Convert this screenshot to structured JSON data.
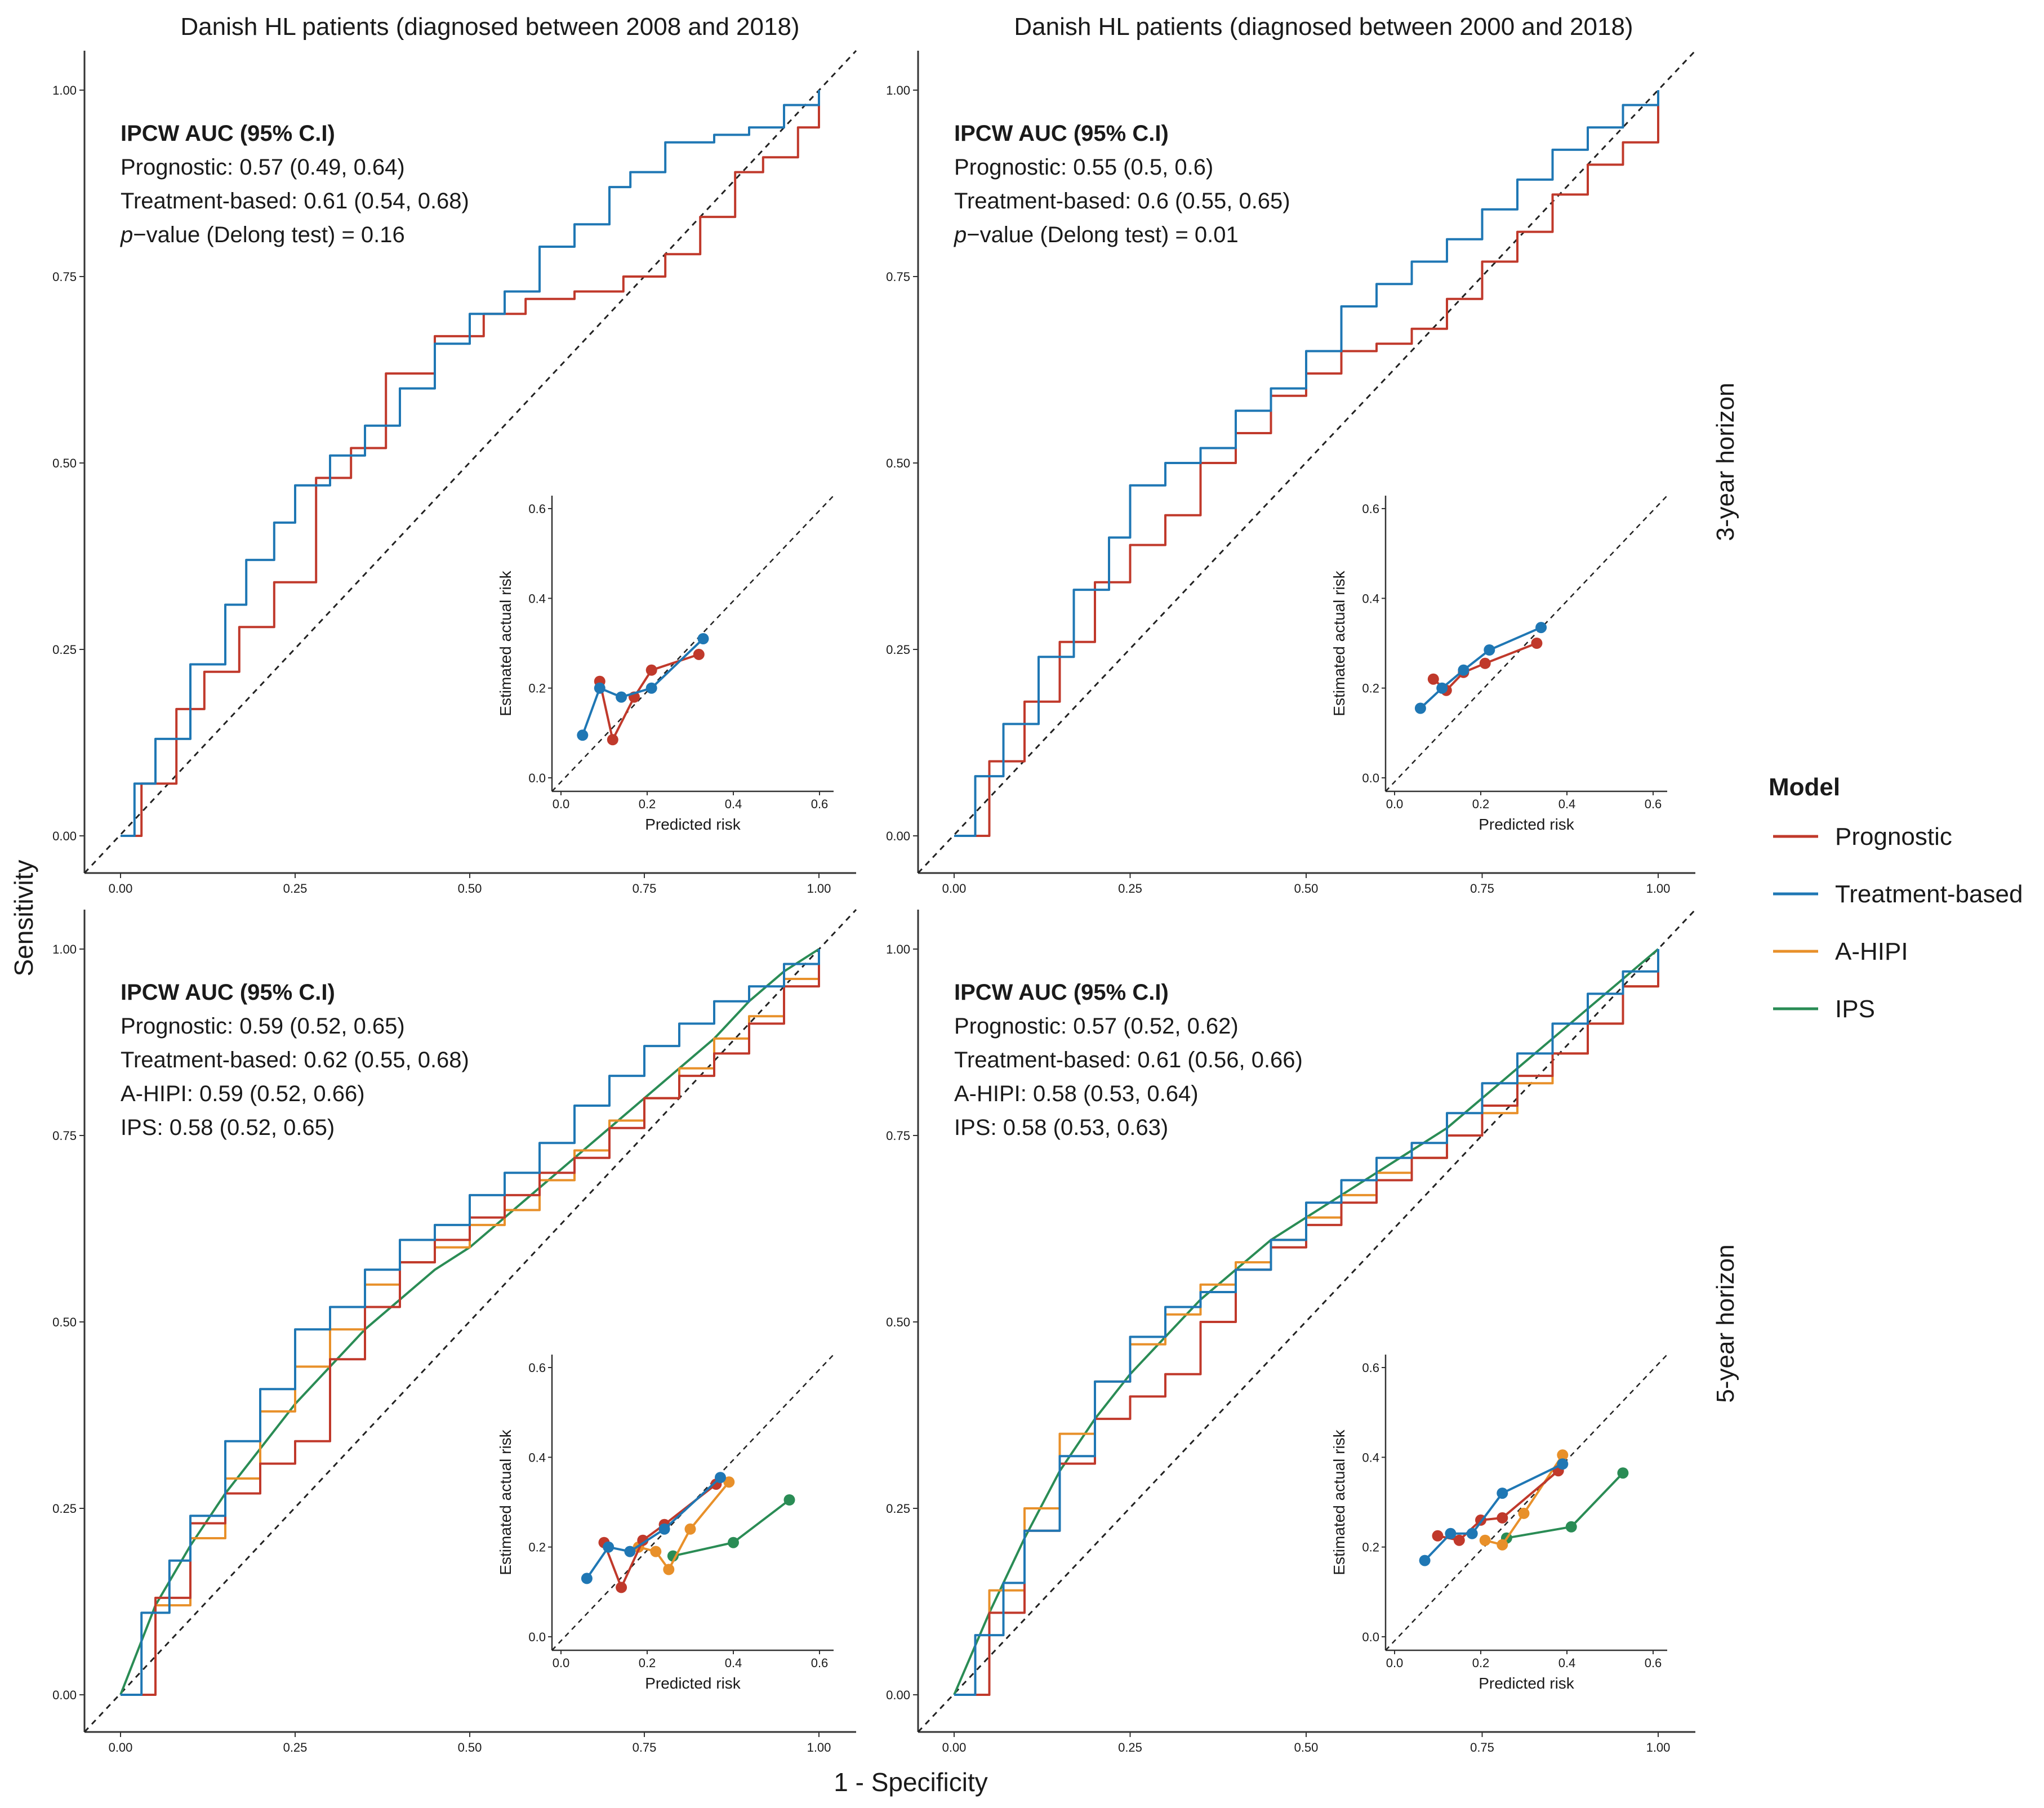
{
  "colors": {
    "Prognostic": "#c0392b",
    "Treatment-based": "#1f77b4",
    "A-HIPI": "#e8902a",
    "IPS": "#2a8c55"
  },
  "figure": {
    "x_axis_title": "1 - Specificity",
    "y_axis_title": "Sensitivity",
    "column_titles": [
      "Danish HL patients (diagnosed between 2008 and 2018)",
      "Danish HL patients (diagnosed between 2000 and 2018)"
    ],
    "row_labels": [
      "3-year horizon",
      "5-year horizon"
    ],
    "x_ticks": [
      "0.00",
      "0.25",
      "0.50",
      "0.75",
      "1.00"
    ],
    "y_ticks": [
      "0.00",
      "0.25",
      "0.50",
      "0.75",
      "1.00"
    ],
    "inset_x_ticks": [
      "0.0",
      "0.2",
      "0.4",
      "0.6"
    ],
    "inset_y_ticks": [
      "0.0",
      "0.2",
      "0.4",
      "0.6"
    ],
    "inset_xlabel": "Predicted risk",
    "inset_ylabel": "Estimated actual risk"
  },
  "legend": {
    "title": "Model",
    "items": [
      "Prognostic",
      "Treatment-based",
      "A-HIPI",
      "IPS"
    ]
  },
  "chart_data": [
    {
      "type": "line",
      "panel": "3-year horizon, 2008-2018",
      "title": "Danish HL patients (diagnosed between 2008 and 2018)",
      "xlabel": "1 - Specificity",
      "ylabel": "Sensitivity",
      "xlim": [
        0,
        1
      ],
      "ylim": [
        0,
        1
      ],
      "annotation": {
        "heading": "IPCW AUC (95% C.I)",
        "lines": [
          "Prognostic: 0.57 (0.49, 0.64)",
          "Treatment-based: 0.61 (0.54, 0.68)"
        ],
        "pvalue_prefix": "p",
        "pvalue_rest": "−value (Delong test) = 0.16"
      },
      "series": [
        {
          "name": "Treatment-based",
          "x": [
            0,
            0.02,
            0.05,
            0.1,
            0.15,
            0.18,
            0.22,
            0.25,
            0.3,
            0.35,
            0.4,
            0.45,
            0.5,
            0.55,
            0.6,
            0.65,
            0.7,
            0.73,
            0.78,
            0.85,
            0.9,
            0.95,
            1.0
          ],
          "y": [
            0,
            0.07,
            0.13,
            0.23,
            0.31,
            0.37,
            0.42,
            0.47,
            0.51,
            0.55,
            0.6,
            0.66,
            0.7,
            0.73,
            0.79,
            0.82,
            0.87,
            0.89,
            0.93,
            0.94,
            0.95,
            0.98,
            1.0
          ]
        },
        {
          "name": "Prognostic",
          "x": [
            0,
            0.03,
            0.08,
            0.12,
            0.17,
            0.22,
            0.28,
            0.33,
            0.38,
            0.45,
            0.52,
            0.58,
            0.65,
            0.72,
            0.78,
            0.83,
            0.88,
            0.92,
            0.97,
            1.0
          ],
          "y": [
            0,
            0.07,
            0.17,
            0.22,
            0.28,
            0.34,
            0.48,
            0.52,
            0.62,
            0.67,
            0.7,
            0.72,
            0.73,
            0.75,
            0.78,
            0.83,
            0.89,
            0.91,
            0.95,
            1.0
          ]
        }
      ],
      "calibration": {
        "xlabel": "Predicted risk",
        "ylabel": "Estimated actual risk",
        "xlim": [
          0,
          0.6
        ],
        "ylim": [
          0,
          0.6
        ],
        "series": [
          {
            "name": "Treatment-based",
            "x": [
              0.05,
              0.09,
              0.14,
              0.21,
              0.33
            ],
            "y": [
              0.095,
              0.2,
              0.18,
              0.2,
              0.31
            ]
          },
          {
            "name": "Prognostic",
            "x": [
              0.09,
              0.12,
              0.17,
              0.21,
              0.32
            ],
            "y": [
              0.215,
              0.085,
              0.18,
              0.24,
              0.275
            ]
          }
        ]
      }
    },
    {
      "type": "line",
      "panel": "3-year horizon, 2000-2018",
      "title": "Danish HL patients (diagnosed between 2000 and 2018)",
      "xlabel": "1 - Specificity",
      "ylabel": "Sensitivity",
      "xlim": [
        0,
        1
      ],
      "ylim": [
        0,
        1
      ],
      "annotation": {
        "heading": "IPCW AUC (95% C.I)",
        "lines": [
          "Prognostic: 0.55 (0.5, 0.6)",
          "Treatment-based: 0.6 (0.55, 0.65)"
        ],
        "pvalue_prefix": "p",
        "pvalue_rest": "−value (Delong test) = 0.01"
      },
      "series": [
        {
          "name": "Treatment-based",
          "x": [
            0,
            0.03,
            0.07,
            0.12,
            0.17,
            0.22,
            0.25,
            0.3,
            0.35,
            0.4,
            0.45,
            0.5,
            0.55,
            0.6,
            0.65,
            0.7,
            0.75,
            0.8,
            0.85,
            0.9,
            0.95,
            1.0
          ],
          "y": [
            0,
            0.08,
            0.15,
            0.24,
            0.33,
            0.4,
            0.47,
            0.5,
            0.52,
            0.57,
            0.6,
            0.65,
            0.71,
            0.74,
            0.77,
            0.8,
            0.84,
            0.88,
            0.92,
            0.95,
            0.98,
            1.0
          ]
        },
        {
          "name": "Prognostic",
          "x": [
            0,
            0.05,
            0.1,
            0.15,
            0.2,
            0.25,
            0.3,
            0.35,
            0.4,
            0.45,
            0.5,
            0.55,
            0.6,
            0.65,
            0.7,
            0.75,
            0.8,
            0.85,
            0.9,
            0.95,
            1.0
          ],
          "y": [
            0,
            0.1,
            0.18,
            0.26,
            0.34,
            0.39,
            0.43,
            0.5,
            0.54,
            0.59,
            0.62,
            0.65,
            0.66,
            0.68,
            0.72,
            0.77,
            0.81,
            0.86,
            0.9,
            0.93,
            1.0
          ]
        }
      ],
      "calibration": {
        "xlabel": "Predicted risk",
        "ylabel": "Estimated actual risk",
        "xlim": [
          0,
          0.6
        ],
        "ylim": [
          0,
          0.6
        ],
        "series": [
          {
            "name": "Treatment-based",
            "x": [
              0.06,
              0.11,
              0.16,
              0.22,
              0.34
            ],
            "y": [
              0.155,
              0.2,
              0.24,
              0.285,
              0.335
            ]
          },
          {
            "name": "Prognostic",
            "x": [
              0.09,
              0.12,
              0.16,
              0.21,
              0.33
            ],
            "y": [
              0.22,
              0.195,
              0.235,
              0.255,
              0.3
            ]
          }
        ]
      }
    },
    {
      "type": "line",
      "panel": "5-year horizon, 2008-2018",
      "xlabel": "1 - Specificity",
      "ylabel": "Sensitivity",
      "xlim": [
        0,
        1
      ],
      "ylim": [
        0,
        1
      ],
      "annotation": {
        "heading": "IPCW AUC (95% C.I)",
        "lines": [
          "Prognostic: 0.59 (0.52, 0.65)",
          "Treatment-based: 0.62 (0.55, 0.68)",
          "A-HIPI: 0.59 (0.52, 0.66)",
          "IPS: 0.58 (0.52, 0.65)"
        ]
      },
      "series": [
        {
          "name": "Treatment-based",
          "x": [
            0,
            0.03,
            0.07,
            0.1,
            0.15,
            0.2,
            0.25,
            0.3,
            0.35,
            0.4,
            0.45,
            0.5,
            0.55,
            0.6,
            0.65,
            0.7,
            0.75,
            0.8,
            0.85,
            0.9,
            0.95,
            1.0
          ],
          "y": [
            0,
            0.11,
            0.18,
            0.24,
            0.34,
            0.41,
            0.49,
            0.52,
            0.57,
            0.61,
            0.63,
            0.67,
            0.7,
            0.74,
            0.79,
            0.83,
            0.87,
            0.9,
            0.93,
            0.95,
            0.98,
            1.0
          ]
        },
        {
          "name": "Prognostic",
          "x": [
            0,
            0.05,
            0.1,
            0.15,
            0.2,
            0.25,
            0.3,
            0.35,
            0.4,
            0.45,
            0.5,
            0.55,
            0.6,
            0.65,
            0.7,
            0.75,
            0.8,
            0.85,
            0.9,
            0.95,
            1.0
          ],
          "y": [
            0,
            0.13,
            0.23,
            0.27,
            0.31,
            0.34,
            0.45,
            0.52,
            0.58,
            0.61,
            0.64,
            0.67,
            0.7,
            0.72,
            0.76,
            0.8,
            0.83,
            0.86,
            0.9,
            0.95,
            1.0
          ]
        },
        {
          "name": "A-HIPI",
          "x": [
            0,
            0.05,
            0.1,
            0.15,
            0.2,
            0.25,
            0.3,
            0.35,
            0.4,
            0.45,
            0.5,
            0.55,
            0.6,
            0.65,
            0.7,
            0.75,
            0.8,
            0.85,
            0.9,
            0.95,
            1.0
          ],
          "y": [
            0,
            0.12,
            0.21,
            0.29,
            0.38,
            0.44,
            0.49,
            0.55,
            0.58,
            0.6,
            0.63,
            0.65,
            0.69,
            0.73,
            0.77,
            0.8,
            0.84,
            0.88,
            0.91,
            0.96,
            1.0
          ]
        },
        {
          "name": "IPS",
          "x": [
            0,
            0.05,
            0.1,
            0.15,
            0.2,
            0.25,
            0.3,
            0.35,
            0.4,
            0.45,
            0.5,
            0.55,
            0.6,
            0.65,
            0.7,
            0.75,
            0.8,
            0.85,
            0.9,
            0.95,
            1.0
          ],
          "y": [
            0,
            0.12,
            0.2,
            0.27,
            0.33,
            0.39,
            0.44,
            0.49,
            0.53,
            0.57,
            0.6,
            0.64,
            0.68,
            0.72,
            0.76,
            0.8,
            0.84,
            0.88,
            0.93,
            0.97,
            1.0
          ]
        }
      ],
      "calibration": {
        "xlabel": "Predicted risk",
        "ylabel": "Estimated actual risk",
        "xlim": [
          0,
          0.6
        ],
        "ylim": [
          0,
          0.6
        ],
        "series": [
          {
            "name": "Treatment-based",
            "x": [
              0.06,
              0.11,
              0.16,
              0.24,
              0.37
            ],
            "y": [
              0.13,
              0.2,
              0.19,
              0.24,
              0.355
            ]
          },
          {
            "name": "Prognostic",
            "x": [
              0.1,
              0.14,
              0.19,
              0.24,
              0.36
            ],
            "y": [
              0.21,
              0.11,
              0.215,
              0.25,
              0.34
            ]
          },
          {
            "name": "A-HIPI",
            "x": [
              0.18,
              0.22,
              0.25,
              0.3,
              0.39
            ],
            "y": [
              0.2,
              0.19,
              0.15,
              0.24,
              0.345
            ]
          },
          {
            "name": "IPS",
            "x": [
              0.26,
              0.4,
              0.53
            ],
            "y": [
              0.18,
              0.21,
              0.305
            ]
          }
        ]
      }
    },
    {
      "type": "line",
      "panel": "5-year horizon, 2000-2018",
      "xlabel": "1 - Specificity",
      "ylabel": "Sensitivity",
      "xlim": [
        0,
        1
      ],
      "ylim": [
        0,
        1
      ],
      "annotation": {
        "heading": "IPCW AUC (95% C.I)",
        "lines": [
          "Prognostic: 0.57 (0.52, 0.62)",
          "Treatment-based: 0.61 (0.56, 0.66)",
          "A-HIPI: 0.58 (0.53, 0.64)",
          "IPS: 0.58 (0.53, 0.63)"
        ]
      },
      "series": [
        {
          "name": "Treatment-based",
          "x": [
            0,
            0.03,
            0.07,
            0.1,
            0.15,
            0.2,
            0.25,
            0.3,
            0.35,
            0.4,
            0.45,
            0.5,
            0.55,
            0.6,
            0.65,
            0.7,
            0.75,
            0.8,
            0.85,
            0.9,
            0.95,
            1.0
          ],
          "y": [
            0,
            0.08,
            0.15,
            0.22,
            0.32,
            0.42,
            0.48,
            0.52,
            0.54,
            0.57,
            0.61,
            0.66,
            0.69,
            0.72,
            0.74,
            0.78,
            0.82,
            0.86,
            0.9,
            0.94,
            0.97,
            1.0
          ]
        },
        {
          "name": "Prognostic",
          "x": [
            0,
            0.05,
            0.1,
            0.15,
            0.2,
            0.25,
            0.3,
            0.35,
            0.4,
            0.45,
            0.5,
            0.55,
            0.6,
            0.65,
            0.7,
            0.75,
            0.8,
            0.85,
            0.9,
            0.95,
            1.0
          ],
          "y": [
            0,
            0.11,
            0.22,
            0.31,
            0.37,
            0.4,
            0.43,
            0.5,
            0.57,
            0.6,
            0.63,
            0.66,
            0.69,
            0.72,
            0.75,
            0.79,
            0.83,
            0.86,
            0.9,
            0.95,
            1.0
          ]
        },
        {
          "name": "A-HIPI",
          "x": [
            0,
            0.05,
            0.1,
            0.15,
            0.2,
            0.25,
            0.3,
            0.35,
            0.4,
            0.45,
            0.5,
            0.55,
            0.6,
            0.65,
            0.7,
            0.75,
            0.8,
            0.85,
            0.9,
            0.95,
            1.0
          ],
          "y": [
            0,
            0.14,
            0.25,
            0.35,
            0.42,
            0.47,
            0.51,
            0.55,
            0.58,
            0.61,
            0.64,
            0.67,
            0.7,
            0.72,
            0.75,
            0.78,
            0.82,
            0.86,
            0.9,
            0.95,
            1.0
          ]
        },
        {
          "name": "IPS",
          "x": [
            0,
            0.05,
            0.1,
            0.15,
            0.2,
            0.25,
            0.3,
            0.35,
            0.4,
            0.45,
            0.5,
            0.55,
            0.6,
            0.65,
            0.7,
            0.75,
            0.8,
            0.85,
            0.9,
            0.95,
            1.0
          ],
          "y": [
            0,
            0.11,
            0.21,
            0.3,
            0.37,
            0.43,
            0.48,
            0.53,
            0.57,
            0.61,
            0.64,
            0.67,
            0.7,
            0.73,
            0.76,
            0.8,
            0.84,
            0.88,
            0.92,
            0.96,
            1.0
          ]
        }
      ],
      "calibration": {
        "xlabel": "Predicted risk",
        "ylabel": "Estimated actual risk",
        "xlim": [
          0,
          0.6
        ],
        "ylim": [
          0,
          0.6
        ],
        "series": [
          {
            "name": "Treatment-based",
            "x": [
              0.07,
              0.13,
              0.18,
              0.25,
              0.39
            ],
            "y": [
              0.17,
              0.23,
              0.23,
              0.32,
              0.385
            ]
          },
          {
            "name": "Prognostic",
            "x": [
              0.1,
              0.15,
              0.2,
              0.25,
              0.38
            ],
            "y": [
              0.225,
              0.215,
              0.26,
              0.265,
              0.37
            ]
          },
          {
            "name": "A-HIPI",
            "x": [
              0.21,
              0.25,
              0.3,
              0.39
            ],
            "y": [
              0.215,
              0.205,
              0.275,
              0.405
            ]
          },
          {
            "name": "IPS",
            "x": [
              0.26,
              0.41,
              0.53
            ],
            "y": [
              0.22,
              0.245,
              0.365
            ]
          }
        ]
      }
    }
  ]
}
